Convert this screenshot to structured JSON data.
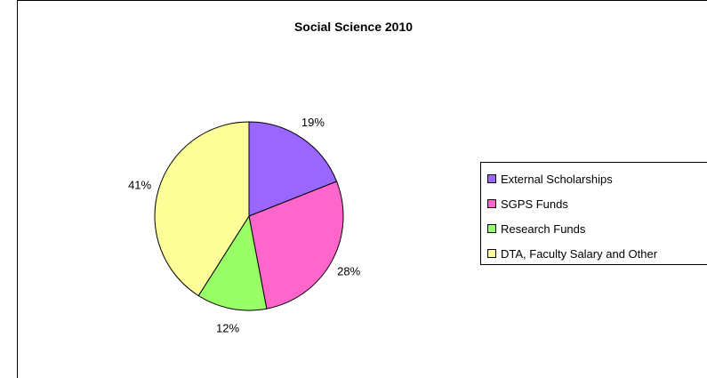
{
  "chart_data": {
    "type": "pie",
    "title": "Social Science 2010",
    "categories": [
      "External Scholarships",
      "SGPS Funds",
      "Research Funds",
      "DTA, Faculty Salary and Other"
    ],
    "values": [
      19,
      28,
      12,
      41
    ],
    "labels": [
      "19%",
      "28%",
      "12%",
      "41%"
    ],
    "colors": [
      "#9966ff",
      "#ff66cc",
      "#99ff66",
      "#ffff99"
    ],
    "legend_position": "right"
  }
}
